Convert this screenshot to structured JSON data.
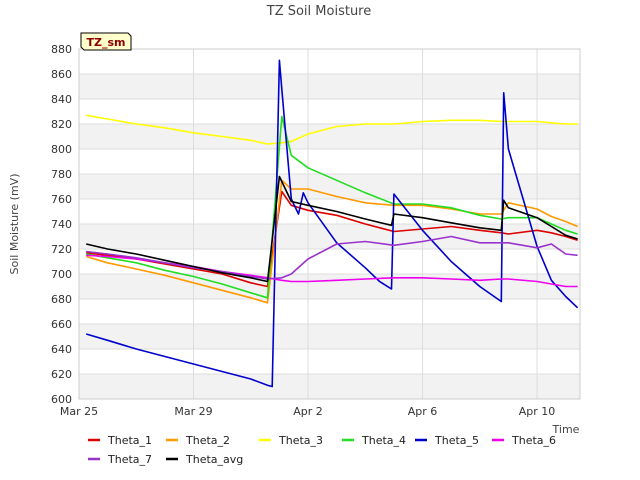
{
  "chart_data": {
    "type": "line",
    "title": "TZ Soil Moisture",
    "xlabel": "Time",
    "ylabel": "Soil Moisture (mV)",
    "site_tag": "TZ_sm",
    "xlim": [
      "2024-03-25",
      "2024-04-11T12:00"
    ],
    "x_ticks": [
      {
        "x": "2024-03-25",
        "label": "Mar 25"
      },
      {
        "x": "2024-03-29",
        "label": "Mar 29"
      },
      {
        "x": "2024-04-02",
        "label": "Apr 2"
      },
      {
        "x": "2024-04-06",
        "label": "Apr 6"
      },
      {
        "x": "2024-04-10",
        "label": "Apr 10"
      }
    ],
    "ylim": [
      600,
      880
    ],
    "y_ticks": [
      600,
      620,
      640,
      660,
      680,
      700,
      720,
      740,
      760,
      780,
      800,
      820,
      840,
      860,
      880
    ],
    "grid": true,
    "legend_position": "bottom",
    "series": [
      {
        "name": "Theta_1",
        "color": "#dd0000",
        "points": [
          [
            "2024-03-25T06:00",
            717
          ],
          [
            "2024-03-26T00:00",
            715
          ],
          [
            "2024-03-27T00:00",
            712
          ],
          [
            "2024-03-28T00:00",
            708
          ],
          [
            "2024-03-29T00:00",
            704
          ],
          [
            "2024-03-30T00:00",
            700
          ],
          [
            "2024-03-31T00:00",
            693
          ],
          [
            "2024-03-31T14:00",
            690
          ],
          [
            "2024-04-01T02:00",
            766
          ],
          [
            "2024-04-01T10:00",
            755
          ],
          [
            "2024-04-02T00:00",
            751
          ],
          [
            "2024-04-03T00:00",
            747
          ],
          [
            "2024-04-04T00:00",
            740
          ],
          [
            "2024-04-05T00:00",
            734
          ],
          [
            "2024-04-06T00:00",
            736
          ],
          [
            "2024-04-07T00:00",
            738
          ],
          [
            "2024-04-08T00:00",
            735
          ],
          [
            "2024-04-08T18:00",
            733
          ],
          [
            "2024-04-09T00:00",
            732
          ],
          [
            "2024-04-10T00:00",
            735
          ],
          [
            "2024-04-10T12:00",
            733
          ],
          [
            "2024-04-11T00:00",
            730
          ],
          [
            "2024-04-11T10:00",
            727
          ]
        ]
      },
      {
        "name": "Theta_2",
        "color": "#ff9900",
        "points": [
          [
            "2024-03-25T06:00",
            714
          ],
          [
            "2024-03-26T00:00",
            709
          ],
          [
            "2024-03-27T00:00",
            704
          ],
          [
            "2024-03-28T00:00",
            699
          ],
          [
            "2024-03-29T00:00",
            693
          ],
          [
            "2024-03-30T00:00",
            687
          ],
          [
            "2024-03-31T00:00",
            681
          ],
          [
            "2024-03-31T14:00",
            677
          ],
          [
            "2024-04-01T02:00",
            775
          ],
          [
            "2024-04-01T10:00",
            768
          ],
          [
            "2024-04-02T00:00",
            768
          ],
          [
            "2024-04-03T00:00",
            762
          ],
          [
            "2024-04-04T00:00",
            757
          ],
          [
            "2024-04-05T00:00",
            755
          ],
          [
            "2024-04-06T00:00",
            755
          ],
          [
            "2024-04-07T00:00",
            752
          ],
          [
            "2024-04-08T00:00",
            748
          ],
          [
            "2024-04-08T18:00",
            748
          ],
          [
            "2024-04-09T00:00",
            757
          ],
          [
            "2024-04-10T00:00",
            752
          ],
          [
            "2024-04-10T12:00",
            746
          ],
          [
            "2024-04-11T00:00",
            742
          ],
          [
            "2024-04-11T10:00",
            738
          ]
        ]
      },
      {
        "name": "Theta_3",
        "color": "#ffff00",
        "points": [
          [
            "2024-03-25T06:00",
            827
          ],
          [
            "2024-03-26T00:00",
            824
          ],
          [
            "2024-03-27T00:00",
            820
          ],
          [
            "2024-03-28T00:00",
            817
          ],
          [
            "2024-03-29T00:00",
            813
          ],
          [
            "2024-03-30T00:00",
            810
          ],
          [
            "2024-03-31T00:00",
            807
          ],
          [
            "2024-03-31T14:00",
            804
          ],
          [
            "2024-04-01T02:00",
            805
          ],
          [
            "2024-04-01T10:00",
            806
          ],
          [
            "2024-04-02T00:00",
            812
          ],
          [
            "2024-04-03T00:00",
            818
          ],
          [
            "2024-04-04T00:00",
            820
          ],
          [
            "2024-04-05T00:00",
            820
          ],
          [
            "2024-04-06T00:00",
            822
          ],
          [
            "2024-04-07T00:00",
            823
          ],
          [
            "2024-04-08T00:00",
            823
          ],
          [
            "2024-04-08T18:00",
            822
          ],
          [
            "2024-04-09T00:00",
            822
          ],
          [
            "2024-04-10T00:00",
            822
          ],
          [
            "2024-04-10T12:00",
            821
          ],
          [
            "2024-04-11T00:00",
            820
          ],
          [
            "2024-04-11T10:00",
            820
          ]
        ]
      },
      {
        "name": "Theta_4",
        "color": "#22dd22",
        "points": [
          [
            "2024-03-25T06:00",
            716
          ],
          [
            "2024-03-26T00:00",
            713
          ],
          [
            "2024-03-27T00:00",
            709
          ],
          [
            "2024-03-28T00:00",
            703
          ],
          [
            "2024-03-29T00:00",
            698
          ],
          [
            "2024-03-30T00:00",
            692
          ],
          [
            "2024-03-31T00:00",
            685
          ],
          [
            "2024-03-31T14:00",
            681
          ],
          [
            "2024-04-01T02:00",
            826
          ],
          [
            "2024-04-01T10:00",
            795
          ],
          [
            "2024-04-02T00:00",
            785
          ],
          [
            "2024-04-03T00:00",
            775
          ],
          [
            "2024-04-04T00:00",
            765
          ],
          [
            "2024-04-05T00:00",
            756
          ],
          [
            "2024-04-06T00:00",
            756
          ],
          [
            "2024-04-07T00:00",
            753
          ],
          [
            "2024-04-08T00:00",
            747
          ],
          [
            "2024-04-08T18:00",
            744
          ],
          [
            "2024-04-09T00:00",
            745
          ],
          [
            "2024-04-10T00:00",
            745
          ],
          [
            "2024-04-10T12:00",
            740
          ],
          [
            "2024-04-11T00:00",
            735
          ],
          [
            "2024-04-11T10:00",
            732
          ]
        ]
      },
      {
        "name": "Theta_5",
        "color": "#0000cc",
        "points": [
          [
            "2024-03-25T06:00",
            652
          ],
          [
            "2024-03-26T00:00",
            647
          ],
          [
            "2024-03-27T00:00",
            640
          ],
          [
            "2024-03-28T00:00",
            634
          ],
          [
            "2024-03-29T00:00",
            628
          ],
          [
            "2024-03-30T00:00",
            622
          ],
          [
            "2024-03-31T00:00",
            616
          ],
          [
            "2024-03-31T14:00",
            611
          ],
          [
            "2024-03-31T18:00",
            610
          ],
          [
            "2024-04-01T00:00",
            871
          ],
          [
            "2024-04-01T02:00",
            848
          ],
          [
            "2024-04-01T10:00",
            760
          ],
          [
            "2024-04-01T16:00",
            748
          ],
          [
            "2024-04-01T20:00",
            765
          ],
          [
            "2024-04-02T00:00",
            757
          ],
          [
            "2024-04-03T00:00",
            725
          ],
          [
            "2024-04-04T00:00",
            705
          ],
          [
            "2024-04-04T12:00",
            694
          ],
          [
            "2024-04-04T22:00",
            688
          ],
          [
            "2024-04-05T00:00",
            764
          ],
          [
            "2024-04-06T00:00",
            735
          ],
          [
            "2024-04-07T00:00",
            710
          ],
          [
            "2024-04-08T00:00",
            690
          ],
          [
            "2024-04-08T18:00",
            678
          ],
          [
            "2024-04-08T20:00",
            845
          ],
          [
            "2024-04-09T00:00",
            800
          ],
          [
            "2024-04-10T00:00",
            722
          ],
          [
            "2024-04-10T12:00",
            695
          ],
          [
            "2024-04-11T00:00",
            682
          ],
          [
            "2024-04-11T10:00",
            673
          ]
        ]
      },
      {
        "name": "Theta_6",
        "color": "#ee00ee",
        "points": [
          [
            "2024-03-25T06:00",
            715
          ],
          [
            "2024-03-26T00:00",
            714
          ],
          [
            "2024-03-27T00:00",
            712
          ],
          [
            "2024-03-28T00:00",
            709
          ],
          [
            "2024-03-29T00:00",
            706
          ],
          [
            "2024-03-30T00:00",
            702
          ],
          [
            "2024-03-31T00:00",
            699
          ],
          [
            "2024-03-31T14:00",
            697
          ],
          [
            "2024-04-01T02:00",
            695
          ],
          [
            "2024-04-01T10:00",
            694
          ],
          [
            "2024-04-02T00:00",
            694
          ],
          [
            "2024-04-03T00:00",
            695
          ],
          [
            "2024-04-04T00:00",
            696
          ],
          [
            "2024-04-05T00:00",
            697
          ],
          [
            "2024-04-06T00:00",
            697
          ],
          [
            "2024-04-07T00:00",
            696
          ],
          [
            "2024-04-08T00:00",
            695
          ],
          [
            "2024-04-08T18:00",
            696
          ],
          [
            "2024-04-09T00:00",
            696
          ],
          [
            "2024-04-10T00:00",
            694
          ],
          [
            "2024-04-10T12:00",
            692
          ],
          [
            "2024-04-11T00:00",
            690
          ],
          [
            "2024-04-11T10:00",
            690
          ]
        ]
      },
      {
        "name": "Theta_7",
        "color": "#9933cc",
        "points": [
          [
            "2024-03-25T06:00",
            718
          ],
          [
            "2024-03-26T00:00",
            716
          ],
          [
            "2024-03-27T00:00",
            713
          ],
          [
            "2024-03-28T00:00",
            709
          ],
          [
            "2024-03-29T00:00",
            705
          ],
          [
            "2024-03-30T00:00",
            702
          ],
          [
            "2024-03-31T00:00",
            698
          ],
          [
            "2024-03-31T14:00",
            696
          ],
          [
            "2024-04-01T02:00",
            697
          ],
          [
            "2024-04-01T10:00",
            700
          ],
          [
            "2024-04-02T00:00",
            712
          ],
          [
            "2024-04-03T00:00",
            724
          ],
          [
            "2024-04-04T00:00",
            726
          ],
          [
            "2024-04-05T00:00",
            723
          ],
          [
            "2024-04-06T00:00",
            726
          ],
          [
            "2024-04-07T00:00",
            730
          ],
          [
            "2024-04-08T00:00",
            725
          ],
          [
            "2024-04-08T18:00",
            725
          ],
          [
            "2024-04-09T00:00",
            725
          ],
          [
            "2024-04-10T00:00",
            721
          ],
          [
            "2024-04-10T12:00",
            724
          ],
          [
            "2024-04-11T00:00",
            716
          ],
          [
            "2024-04-11T10:00",
            715
          ]
        ]
      },
      {
        "name": "Theta_avg",
        "color": "#000000",
        "points": [
          [
            "2024-03-25T06:00",
            724
          ],
          [
            "2024-03-26T00:00",
            720
          ],
          [
            "2024-03-27T00:00",
            716
          ],
          [
            "2024-03-28T00:00",
            711
          ],
          [
            "2024-03-29T00:00",
            706
          ],
          [
            "2024-03-30T00:00",
            701
          ],
          [
            "2024-03-31T00:00",
            697
          ],
          [
            "2024-03-31T14:00",
            694
          ],
          [
            "2024-04-01T00:00",
            778
          ],
          [
            "2024-04-01T10:00",
            758
          ],
          [
            "2024-04-02T00:00",
            755
          ],
          [
            "2024-04-03T00:00",
            750
          ],
          [
            "2024-04-04T00:00",
            744
          ],
          [
            "2024-04-04T22:00",
            739
          ],
          [
            "2024-04-05T00:00",
            748
          ],
          [
            "2024-04-06T00:00",
            745
          ],
          [
            "2024-04-07T00:00",
            741
          ],
          [
            "2024-04-08T00:00",
            737
          ],
          [
            "2024-04-08T18:00",
            735
          ],
          [
            "2024-04-08T20:00",
            759
          ],
          [
            "2024-04-09T00:00",
            753
          ],
          [
            "2024-04-10T00:00",
            745
          ],
          [
            "2024-04-10T12:00",
            738
          ],
          [
            "2024-04-11T00:00",
            731
          ],
          [
            "2024-04-11T10:00",
            728
          ]
        ]
      }
    ]
  }
}
